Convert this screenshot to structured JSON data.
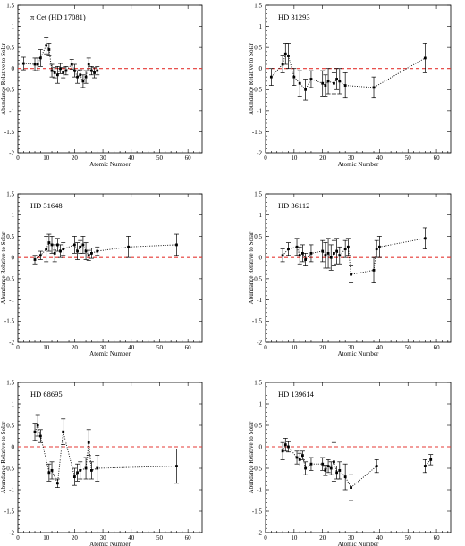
{
  "chart_data": [
    {
      "type": "scatter",
      "title": "π Cet (HD 17081)",
      "xlabel": "Atomic Number",
      "ylabel": "Abundance Relative to Solar",
      "xlim": [
        0,
        65
      ],
      "ylim": [
        -2,
        1.5
      ],
      "xticks": [
        0,
        10,
        20,
        30,
        40,
        50,
        60
      ],
      "yticks": [
        -2,
        -1.5,
        -1,
        -0.5,
        0,
        0.5,
        1,
        1.5
      ],
      "zero_line": 0,
      "points": [
        {
          "x": 2,
          "y": 0.12,
          "err": 0.15
        },
        {
          "x": 6,
          "y": 0.1,
          "err": 0.15
        },
        {
          "x": 7,
          "y": 0.1,
          "err": 0.15
        },
        {
          "x": 8,
          "y": 0.25,
          "err": 0.2
        },
        {
          "x": 10,
          "y": 0.55,
          "err": 0.2
        },
        {
          "x": 11,
          "y": 0.45,
          "err": 0.15
        },
        {
          "x": 12,
          "y": -0.05,
          "err": 0.15
        },
        {
          "x": 13,
          "y": -0.1,
          "err": 0.12
        },
        {
          "x": 14,
          "y": -0.15,
          "err": 0.2
        },
        {
          "x": 15,
          "y": 0.0,
          "err": 0.12
        },
        {
          "x": 16,
          "y": -0.1,
          "err": 0.12
        },
        {
          "x": 17,
          "y": -0.05,
          "err": 0.1
        },
        {
          "x": 19,
          "y": 0.1,
          "err": 0.12
        },
        {
          "x": 20,
          "y": -0.05,
          "err": 0.15
        },
        {
          "x": 21,
          "y": -0.2,
          "err": 0.15
        },
        {
          "x": 22,
          "y": -0.15,
          "err": 0.12
        },
        {
          "x": 23,
          "y": -0.3,
          "err": 0.15
        },
        {
          "x": 24,
          "y": -0.2,
          "err": 0.15
        },
        {
          "x": 25,
          "y": 0.1,
          "err": 0.15
        },
        {
          "x": 26,
          "y": -0.05,
          "err": 0.1
        },
        {
          "x": 27,
          "y": -0.1,
          "err": 0.12
        },
        {
          "x": 28,
          "y": -0.05,
          "err": 0.1
        }
      ]
    },
    {
      "type": "scatter",
      "title": "HD 31293",
      "xlabel": "Atomic Number",
      "ylabel": "Abundance Relative to Solar",
      "xlim": [
        0,
        65
      ],
      "ylim": [
        -2,
        1.5
      ],
      "xticks": [
        0,
        10,
        20,
        30,
        40,
        50,
        60
      ],
      "yticks": [
        -2,
        -1.5,
        -1,
        -0.5,
        0,
        0.5,
        1,
        1.5
      ],
      "zero_line": 0,
      "points": [
        {
          "x": 2,
          "y": -0.2,
          "err": 0.2
        },
        {
          "x": 6,
          "y": 0.1,
          "err": 0.2
        },
        {
          "x": 7,
          "y": 0.35,
          "err": 0.25
        },
        {
          "x": 8,
          "y": 0.3,
          "err": 0.3
        },
        {
          "x": 10,
          "y": -0.2,
          "err": 0.2
        },
        {
          "x": 12,
          "y": -0.35,
          "err": 0.3
        },
        {
          "x": 14,
          "y": -0.5,
          "err": 0.25
        },
        {
          "x": 16,
          "y": -0.25,
          "err": 0.2
        },
        {
          "x": 20,
          "y": -0.35,
          "err": 0.3
        },
        {
          "x": 21,
          "y": -0.4,
          "err": 0.25
        },
        {
          "x": 22,
          "y": -0.3,
          "err": 0.3
        },
        {
          "x": 24,
          "y": -0.35,
          "err": 0.25
        },
        {
          "x": 25,
          "y": -0.25,
          "err": 0.25
        },
        {
          "x": 26,
          "y": -0.3,
          "err": 0.3
        },
        {
          "x": 28,
          "y": -0.4,
          "err": 0.3
        },
        {
          "x": 38,
          "y": -0.45,
          "err": 0.25
        },
        {
          "x": 56,
          "y": 0.25,
          "err": 0.35
        }
      ]
    },
    {
      "type": "scatter",
      "title": "HD 31648",
      "xlabel": "Atomic Number",
      "ylabel": "Abundance Relative to Solar",
      "xlim": [
        0,
        65
      ],
      "ylim": [
        -2,
        1.5
      ],
      "xticks": [
        0,
        10,
        20,
        30,
        40,
        50,
        60
      ],
      "yticks": [
        -2,
        -1.5,
        -1,
        -0.5,
        0,
        0.5,
        1,
        1.5
      ],
      "zero_line": 0,
      "points": [
        {
          "x": 6,
          "y": -0.05,
          "err": 0.1
        },
        {
          "x": 8,
          "y": 0.05,
          "err": 0.1
        },
        {
          "x": 10,
          "y": 0.2,
          "err": 0.3
        },
        {
          "x": 11,
          "y": 0.35,
          "err": 0.2
        },
        {
          "x": 12,
          "y": 0.3,
          "err": 0.2
        },
        {
          "x": 13,
          "y": 0.1,
          "err": 0.2
        },
        {
          "x": 14,
          "y": 0.3,
          "err": 0.15
        },
        {
          "x": 15,
          "y": 0.15,
          "err": 0.15
        },
        {
          "x": 16,
          "y": 0.2,
          "err": 0.15
        },
        {
          "x": 20,
          "y": 0.3,
          "err": 0.2
        },
        {
          "x": 21,
          "y": 0.15,
          "err": 0.2
        },
        {
          "x": 22,
          "y": 0.25,
          "err": 0.15
        },
        {
          "x": 23,
          "y": 0.3,
          "err": 0.2
        },
        {
          "x": 24,
          "y": 0.15,
          "err": 0.2
        },
        {
          "x": 25,
          "y": 0.05,
          "err": 0.12
        },
        {
          "x": 26,
          "y": 0.1,
          "err": 0.12
        },
        {
          "x": 28,
          "y": 0.15,
          "err": 0.1
        },
        {
          "x": 39,
          "y": 0.25,
          "err": 0.25
        },
        {
          "x": 56,
          "y": 0.3,
          "err": 0.25
        }
      ]
    },
    {
      "type": "scatter",
      "title": "HD 36112",
      "xlabel": "Atomic Number",
      "ylabel": "Abundance Relative to Solar",
      "xlim": [
        0,
        65
      ],
      "ylim": [
        -2,
        1.5
      ],
      "xticks": [
        0,
        10,
        20,
        30,
        40,
        50,
        60
      ],
      "yticks": [
        -2,
        -1.5,
        -1,
        -0.5,
        0,
        0.5,
        1,
        1.5
      ],
      "zero_line": 0,
      "points": [
        {
          "x": 6,
          "y": 0.05,
          "err": 0.15
        },
        {
          "x": 8,
          "y": 0.2,
          "err": 0.15
        },
        {
          "x": 11,
          "y": 0.25,
          "err": 0.2
        },
        {
          "x": 12,
          "y": 0.05,
          "err": 0.2
        },
        {
          "x": 13,
          "y": 0.1,
          "err": 0.2
        },
        {
          "x": 14,
          "y": -0.05,
          "err": 0.15
        },
        {
          "x": 16,
          "y": 0.1,
          "err": 0.2
        },
        {
          "x": 20,
          "y": 0.15,
          "err": 0.25
        },
        {
          "x": 21,
          "y": 0.05,
          "err": 0.3
        },
        {
          "x": 22,
          "y": 0.1,
          "err": 0.35
        },
        {
          "x": 23,
          "y": 0.0,
          "err": 0.3
        },
        {
          "x": 24,
          "y": 0.1,
          "err": 0.3
        },
        {
          "x": 25,
          "y": 0.15,
          "err": 0.3
        },
        {
          "x": 26,
          "y": 0.05,
          "err": 0.2
        },
        {
          "x": 28,
          "y": 0.2,
          "err": 0.2
        },
        {
          "x": 29,
          "y": 0.25,
          "err": 0.2
        },
        {
          "x": 30,
          "y": -0.4,
          "err": 0.2
        },
        {
          "x": 38,
          "y": -0.3,
          "err": 0.3
        },
        {
          "x": 39,
          "y": 0.2,
          "err": 0.2
        },
        {
          "x": 40,
          "y": 0.25,
          "err": 0.25
        },
        {
          "x": 56,
          "y": 0.45,
          "err": 0.25
        }
      ]
    },
    {
      "type": "scatter",
      "title": "HD 68695",
      "xlabel": "Atomic Number",
      "ylabel": "Abundance Relative to Solar",
      "xlim": [
        0,
        65
      ],
      "ylim": [
        -2,
        1.5
      ],
      "xticks": [
        0,
        10,
        20,
        30,
        40,
        50,
        60
      ],
      "yticks": [
        -2,
        -1.5,
        -1,
        -0.5,
        0,
        0.5,
        1,
        1.5
      ],
      "zero_line": 0,
      "points": [
        {
          "x": 6,
          "y": 0.35,
          "err": 0.2
        },
        {
          "x": 7,
          "y": 0.5,
          "err": 0.25
        },
        {
          "x": 8,
          "y": 0.25,
          "err": 0.15
        },
        {
          "x": 11,
          "y": -0.6,
          "err": 0.2
        },
        {
          "x": 12,
          "y": -0.55,
          "err": 0.2
        },
        {
          "x": 14,
          "y": -0.85,
          "err": 0.1
        },
        {
          "x": 16,
          "y": 0.35,
          "err": 0.3
        },
        {
          "x": 20,
          "y": -0.7,
          "err": 0.2
        },
        {
          "x": 21,
          "y": -0.6,
          "err": 0.2
        },
        {
          "x": 22,
          "y": -0.55,
          "err": 0.2
        },
        {
          "x": 24,
          "y": -0.5,
          "err": 0.25
        },
        {
          "x": 25,
          "y": 0.1,
          "err": 0.3
        },
        {
          "x": 26,
          "y": -0.55,
          "err": 0.2
        },
        {
          "x": 28,
          "y": -0.5,
          "err": 0.3
        },
        {
          "x": 56,
          "y": -0.45,
          "err": 0.4
        }
      ]
    },
    {
      "type": "scatter",
      "title": "HD 139614",
      "xlabel": "Atomic Number",
      "ylabel": "Abundance Relative to Solar",
      "xlim": [
        0,
        65
      ],
      "ylim": [
        -2,
        1.5
      ],
      "xticks": [
        0,
        10,
        20,
        30,
        40,
        50,
        60
      ],
      "yticks": [
        -2,
        -1.5,
        -1,
        -0.5,
        0,
        0.5,
        1,
        1.5
      ],
      "zero_line": 0,
      "points": [
        {
          "x": 6,
          "y": -0.1,
          "err": 0.2
        },
        {
          "x": 7,
          "y": 0.05,
          "err": 0.15
        },
        {
          "x": 8,
          "y": 0.0,
          "err": 0.12
        },
        {
          "x": 11,
          "y": -0.25,
          "err": 0.15
        },
        {
          "x": 12,
          "y": -0.3,
          "err": 0.15
        },
        {
          "x": 13,
          "y": -0.2,
          "err": 0.1
        },
        {
          "x": 14,
          "y": -0.5,
          "err": 0.15
        },
        {
          "x": 16,
          "y": -0.4,
          "err": 0.15
        },
        {
          "x": 20,
          "y": -0.4,
          "err": 0.15
        },
        {
          "x": 21,
          "y": -0.55,
          "err": 0.12
        },
        {
          "x": 22,
          "y": -0.45,
          "err": 0.15
        },
        {
          "x": 23,
          "y": -0.5,
          "err": 0.15
        },
        {
          "x": 24,
          "y": -0.35,
          "err": 0.45
        },
        {
          "x": 25,
          "y": -0.6,
          "err": 0.15
        },
        {
          "x": 26,
          "y": -0.55,
          "err": 0.2
        },
        {
          "x": 28,
          "y": -0.7,
          "err": 0.3
        },
        {
          "x": 30,
          "y": -0.95,
          "err": 0.3
        },
        {
          "x": 39,
          "y": -0.45,
          "err": 0.15
        },
        {
          "x": 56,
          "y": -0.45,
          "err": 0.15
        },
        {
          "x": 58,
          "y": -0.3,
          "err": 0.12
        }
      ]
    }
  ]
}
